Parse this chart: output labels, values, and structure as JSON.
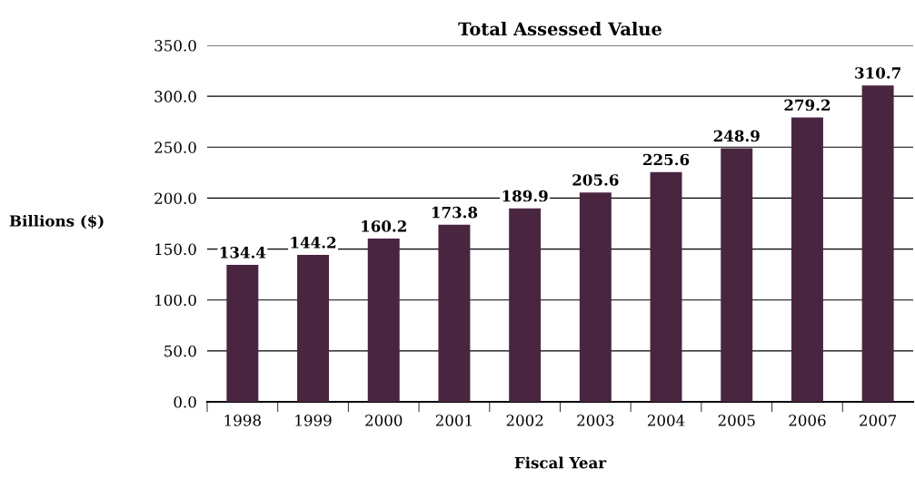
{
  "chart_data": {
    "type": "bar",
    "title": "Total Assessed Value",
    "xlabel": "Fiscal Year",
    "ylabel": "Billions ($)",
    "categories": [
      "1998",
      "1999",
      "2000",
      "2001",
      "2002",
      "2003",
      "2004",
      "2005",
      "2006",
      "2007"
    ],
    "values": [
      134.4,
      144.2,
      160.2,
      173.8,
      189.9,
      205.6,
      225.6,
      248.9,
      279.2,
      310.7
    ],
    "color": "#4a2540",
    "data_labels": true,
    "grid": "y",
    "legend": false,
    "ylim": [
      0,
      350
    ],
    "yticks": [
      {
        "value": 0,
        "label": "0.0"
      },
      {
        "value": 50,
        "label": "50.0"
      },
      {
        "value": 100,
        "label": "100.0"
      },
      {
        "value": 150,
        "label": "150.0"
      },
      {
        "value": 200,
        "label": "200.0"
      },
      {
        "value": 250,
        "label": "250.0"
      },
      {
        "value": 300,
        "label": "300.0"
      },
      {
        "value": 350,
        "label": "350.0"
      }
    ]
  }
}
